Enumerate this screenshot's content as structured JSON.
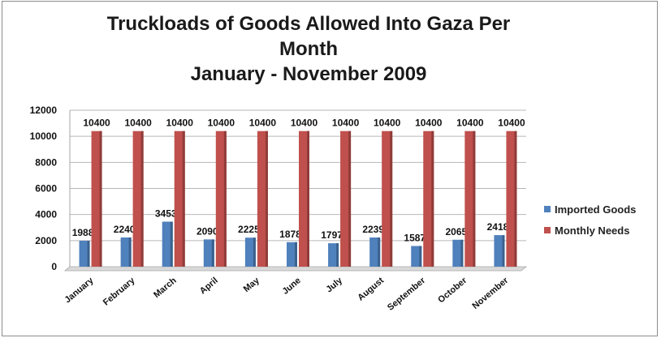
{
  "chart_data": {
    "type": "bar",
    "title": [
      "Truckloads of Goods Allowed Into Gaza Per",
      "Month",
      "January - November 2009"
    ],
    "categories": [
      "January",
      "February",
      "March",
      "April",
      "May",
      "June",
      "July",
      "August",
      "September",
      "October",
      "November"
    ],
    "series": [
      {
        "name": "Imported Goods",
        "color": "#4f81bd",
        "values": [
          1988,
          2240,
          3453,
          2090,
          2225,
          1878,
          1797,
          2239,
          1587,
          2065,
          2418
        ]
      },
      {
        "name": "Monthly Needs",
        "color": "#c0504d",
        "values": [
          10400,
          10400,
          10400,
          10400,
          10400,
          10400,
          10400,
          10400,
          10400,
          10400,
          10400
        ]
      }
    ],
    "ylim": [
      0,
      12000
    ],
    "yticks": [
      0,
      2000,
      4000,
      6000,
      8000,
      10000,
      12000
    ],
    "grid": true,
    "legend": "right"
  }
}
